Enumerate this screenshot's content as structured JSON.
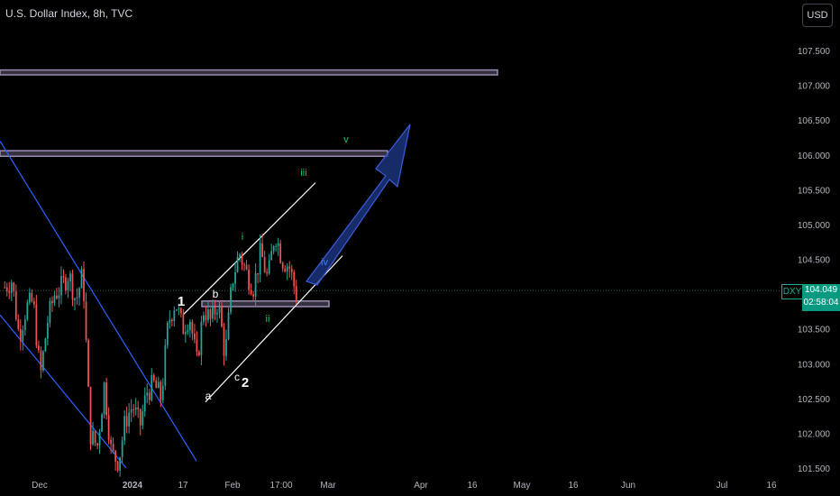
{
  "header": {
    "title": "U.S. Dollar Index, 8h, TVC",
    "currency_button": "USD"
  },
  "price_badge": {
    "symbol": "DXY",
    "price": "104.049",
    "countdown": "02:58:04"
  },
  "colors": {
    "up": "#26a69a",
    "down": "#ef5350",
    "channel_down": "#2962ff",
    "channel_up": "#ffffff",
    "zone": "#9c8bb3",
    "arrow": "#1e3a8a",
    "wave_green": "#22c55e",
    "wave_blue": "#3b82f6"
  },
  "chart_data": {
    "type": "candlestick",
    "symbol": "DXY",
    "timeframe": "8h",
    "ylim": [
      101.5,
      107.5
    ],
    "y_ticks": [
      "107.500",
      "107.000",
      "106.500",
      "106.000",
      "105.500",
      "105.000",
      "104.500",
      "104.000",
      "103.500",
      "103.000",
      "102.500",
      "102.000",
      "101.500"
    ],
    "x_ticks": [
      "Dec",
      "2024",
      "17",
      "Feb",
      "17:00",
      "Mar",
      "Apr",
      "16",
      "May",
      "16",
      "Jun",
      "Jul",
      "16"
    ],
    "last_price": 104.049,
    "price_path": [
      104.1,
      104.2,
      103.4,
      103.8,
      103.9,
      102.8,
      103.6,
      104.0,
      104.1,
      104.3,
      103.9,
      104.3,
      102.0,
      101.8,
      102.7,
      101.7,
      101.6,
      102.2,
      102.4,
      102.1,
      102.6,
      102.7,
      102.5,
      103.6,
      103.9,
      103.5,
      103.7,
      103.0,
      103.8,
      103.6,
      103.9,
      103.1,
      104.2,
      104.6,
      104.3,
      104.1,
      104.6,
      104.2,
      104.9,
      104.5,
      104.4,
      104.0
    ],
    "wave_labels": [
      "1",
      "b",
      "a",
      "c",
      "2",
      "i",
      "ii",
      "iii",
      "iv",
      "v"
    ],
    "zones": [
      [
        107.15,
        107.22
      ],
      [
        105.98,
        106.06
      ],
      [
        103.82,
        103.9
      ]
    ],
    "last_price_line": 104.049
  }
}
